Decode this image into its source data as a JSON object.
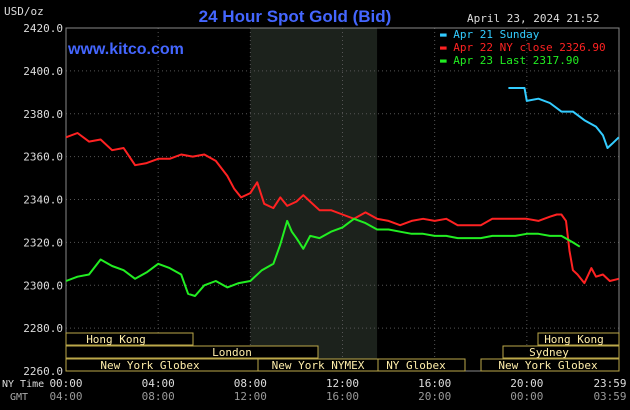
{
  "header": {
    "title": "24 Hour Spot Gold (Bid)",
    "unit": "USD/oz",
    "timestamp": "April 23, 2024 21:52",
    "brand": "www.kitco.com"
  },
  "legend": [
    {
      "label": "Apr 21 Sunday",
      "color": "#33ccff"
    },
    {
      "label": "Apr 22 NY close 2326.90",
      "color": "#ff2222"
    },
    {
      "label": "Apr 23 Last 2317.90",
      "color": "#22ee22"
    }
  ],
  "axes": {
    "y_ticks": [
      "2420.0",
      "2400.0",
      "2380.0",
      "2360.0",
      "2340.0",
      "2320.0",
      "2300.0",
      "2280.0",
      "2260.0"
    ],
    "x_ny_label": "NY Time",
    "x_gmt_label": "GMT",
    "x_ny_ticks": [
      "00:00",
      "04:00",
      "08:00",
      "12:00",
      "16:00",
      "20:00",
      "23:59"
    ],
    "x_gmt_ticks": [
      "04:00",
      "08:00",
      "12:00",
      "16:00",
      "20:00",
      "00:00",
      "03:59"
    ]
  },
  "sessions": {
    "hong_kong_left": "Hong Kong",
    "london": "London",
    "ny_globex_left": "New York Globex",
    "ny_nymex": "New York NYMEX",
    "ny_globex_mid": "NY Globex",
    "hong_kong_right": "Hong Kong",
    "sydney": "Sydney",
    "ny_globex_right": "New York Globex"
  },
  "colors": {
    "background": "#000000",
    "plot_bg": "#000000",
    "shade": "#1c221c",
    "grid": "#555555",
    "title": "#4466ff",
    "brand": "#4466ff",
    "axis_text": "#dddddd",
    "session_box": "#bba84a",
    "session_text": "#ffeeaa"
  },
  "chart_data": {
    "type": "line",
    "title": "24 Hour Spot Gold (Bid)",
    "ylabel": "USD/oz",
    "ylim": [
      2260,
      2420
    ],
    "xlim_hours": [
      0,
      24
    ],
    "grid": true,
    "legend_position": "top-right",
    "series": [
      {
        "name": "Apr 21 Sunday",
        "color": "#33ccff",
        "x": [
          19.2,
          19.9,
          20.0,
          20.5,
          21.0,
          21.5,
          22.0,
          22.5,
          23.0,
          23.3,
          23.5,
          23.7,
          23.99
        ],
        "y": [
          2392,
          2392,
          2386,
          2387,
          2385,
          2381,
          2381,
          2377,
          2374,
          2370,
          2364,
          2366,
          2369
        ]
      },
      {
        "name": "Apr 22 NY close 2326.90",
        "color": "#ff2222",
        "x": [
          0,
          0.5,
          1.0,
          1.5,
          2.0,
          2.5,
          3.0,
          3.5,
          4.0,
          4.5,
          5.0,
          5.5,
          6.0,
          6.5,
          7.0,
          7.3,
          7.6,
          8.0,
          8.3,
          8.6,
          9.0,
          9.3,
          9.6,
          10.0,
          10.3,
          10.6,
          11.0,
          11.5,
          12.0,
          12.5,
          13.0,
          13.5,
          14.0,
          14.5,
          15.0,
          15.5,
          16.0,
          16.5,
          17.0,
          17.5,
          18.0,
          18.5,
          19.0,
          19.5,
          20.0,
          20.5,
          21.0,
          21.3,
          21.5,
          21.7,
          21.85,
          22.0,
          22.2,
          22.5,
          22.8,
          23.0,
          23.3,
          23.6,
          23.99
        ],
        "y": [
          2369,
          2371,
          2367,
          2368,
          2363,
          2364,
          2356,
          2357,
          2359,
          2359,
          2361,
          2360,
          2361,
          2358,
          2351,
          2345,
          2341,
          2343,
          2348,
          2338,
          2336,
          2341,
          2337,
          2339,
          2342,
          2339,
          2335,
          2335,
          2333,
          2331,
          2334,
          2331,
          2330,
          2328,
          2330,
          2331,
          2330,
          2331,
          2328,
          2328,
          2328,
          2331,
          2331,
          2331,
          2331,
          2330,
          2332,
          2333,
          2333,
          2330,
          2316,
          2307,
          2305,
          2301,
          2308,
          2304,
          2305,
          2302,
          2303
        ]
      },
      {
        "name": "Apr 23 Last 2317.90",
        "color": "#22ee22",
        "x": [
          0,
          0.5,
          1.0,
          1.5,
          2.0,
          2.5,
          3.0,
          3.5,
          4.0,
          4.5,
          5.0,
          5.3,
          5.6,
          6.0,
          6.5,
          7.0,
          7.5,
          8.0,
          8.5,
          9.0,
          9.3,
          9.6,
          9.8,
          10.0,
          10.3,
          10.6,
          11.0,
          11.5,
          12.0,
          12.5,
          13.0,
          13.5,
          14.0,
          14.5,
          15.0,
          15.5,
          16.0,
          16.5,
          17.0,
          17.5,
          18.0,
          18.5,
          19.0,
          19.5,
          20.0,
          20.5,
          21.0,
          21.5,
          22.0,
          22.3
        ],
        "y": [
          2302,
          2304,
          2305,
          2312,
          2309,
          2307,
          2303,
          2306,
          2310,
          2308,
          2305,
          2296,
          2295,
          2300,
          2302,
          2299,
          2301,
          2302,
          2307,
          2310,
          2319,
          2330,
          2325,
          2322,
          2317,
          2323,
          2322,
          2325,
          2327,
          2331,
          2329,
          2326,
          2326,
          2325,
          2324,
          2324,
          2323,
          2323,
          2322,
          2322,
          2322,
          2323,
          2323,
          2323,
          2324,
          2324,
          2323,
          2323,
          2320,
          2318
        ]
      }
    ]
  }
}
